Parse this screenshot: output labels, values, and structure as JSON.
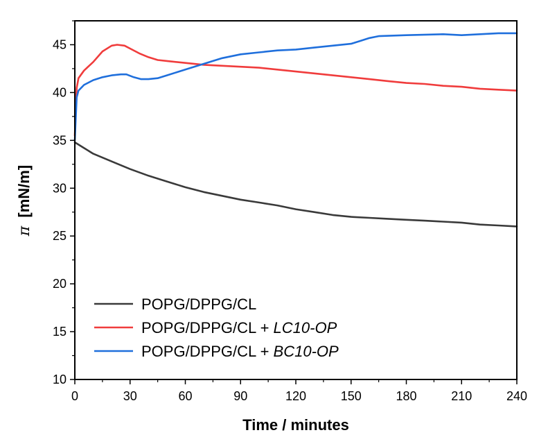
{
  "chart_data": {
    "type": "line",
    "title": "",
    "xlabel": "Time / minutes",
    "ylabel_symbol": "π",
    "ylabel_unit": "[mN/m]",
    "xlim": [
      0,
      240
    ],
    "ylim": [
      10,
      47.5
    ],
    "xticks": [
      0,
      30,
      60,
      90,
      120,
      150,
      180,
      210,
      240
    ],
    "yticks": [
      10,
      15,
      20,
      25,
      30,
      35,
      40,
      45
    ],
    "grid": false,
    "legend_position": "bottom-left",
    "series": [
      {
        "name": "POPG/DPPG/CL",
        "legend_prefix": "POPG/DPPG/CL",
        "legend_suffix": "",
        "color": "#3a3a3a",
        "x": [
          0,
          5,
          10,
          20,
          30,
          40,
          50,
          60,
          70,
          80,
          90,
          100,
          110,
          120,
          130,
          140,
          150,
          160,
          170,
          180,
          190,
          200,
          210,
          220,
          230,
          240
        ],
        "y": [
          34.8,
          34.2,
          33.6,
          32.8,
          32.0,
          31.3,
          30.7,
          30.1,
          29.6,
          29.2,
          28.8,
          28.5,
          28.2,
          27.8,
          27.5,
          27.2,
          27.0,
          26.9,
          26.8,
          26.7,
          26.6,
          26.5,
          26.4,
          26.2,
          26.1,
          26.0
        ]
      },
      {
        "name": "POPG/DPPG/CL + LC10-OP",
        "legend_prefix": "POPG/DPPG/CL + ",
        "legend_suffix": "LC10-OP",
        "color": "#f03c3c",
        "x": [
          0,
          1,
          2,
          5,
          10,
          15,
          20,
          23,
          27,
          30,
          35,
          40,
          45,
          50,
          60,
          70,
          80,
          90,
          100,
          110,
          120,
          130,
          140,
          150,
          160,
          170,
          180,
          190,
          200,
          210,
          220,
          230,
          240
        ],
        "y": [
          35.5,
          40.5,
          41.5,
          42.3,
          43.2,
          44.3,
          44.9,
          45.0,
          44.9,
          44.6,
          44.1,
          43.7,
          43.4,
          43.3,
          43.1,
          42.9,
          42.8,
          42.7,
          42.6,
          42.4,
          42.2,
          42.0,
          41.8,
          41.6,
          41.4,
          41.2,
          41.0,
          40.9,
          40.7,
          40.6,
          40.4,
          40.3,
          40.2
        ]
      },
      {
        "name": "POPG/DPPG/CL + BC10-OP",
        "legend_prefix": "POPG/DPPG/CL + ",
        "legend_suffix": "BC10-OP",
        "color": "#1f6fdc",
        "x": [
          0,
          1,
          2,
          5,
          10,
          15,
          20,
          25,
          28,
          32,
          36,
          40,
          45,
          50,
          60,
          70,
          80,
          90,
          100,
          110,
          120,
          130,
          140,
          150,
          155,
          160,
          165,
          180,
          200,
          210,
          220,
          230,
          240
        ],
        "y": [
          35.0,
          39.5,
          40.2,
          40.8,
          41.3,
          41.6,
          41.8,
          41.9,
          41.9,
          41.6,
          41.4,
          41.4,
          41.5,
          41.8,
          42.4,
          43.0,
          43.6,
          44.0,
          44.2,
          44.4,
          44.5,
          44.7,
          44.9,
          45.1,
          45.4,
          45.7,
          45.9,
          46.0,
          46.1,
          46.0,
          46.1,
          46.2,
          46.2
        ]
      }
    ]
  }
}
